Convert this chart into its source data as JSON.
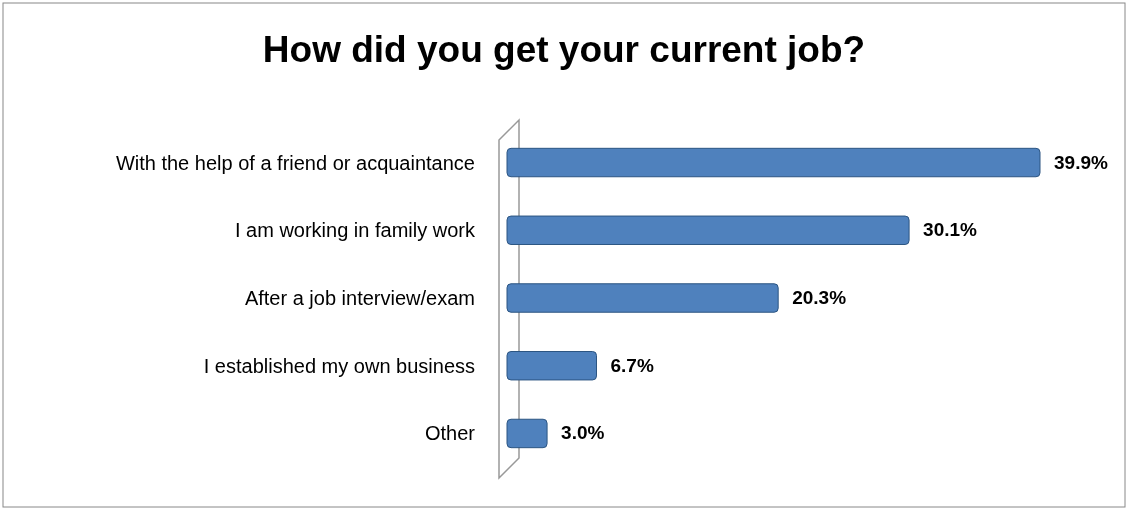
{
  "chart_data": {
    "type": "bar",
    "orientation": "horizontal",
    "title": "How did you get your current job?",
    "categories": [
      "With the help of a friend or acquaintance",
      "I am working in family work",
      "After a job interview/exam",
      "I established my own business",
      "Other"
    ],
    "values": [
      39.9,
      30.1,
      20.3,
      6.7,
      3.0
    ],
    "value_labels": [
      "39.9%",
      "30.1%",
      "20.3%",
      "6.7%",
      "3.0%"
    ],
    "color": "#4f81bd"
  }
}
